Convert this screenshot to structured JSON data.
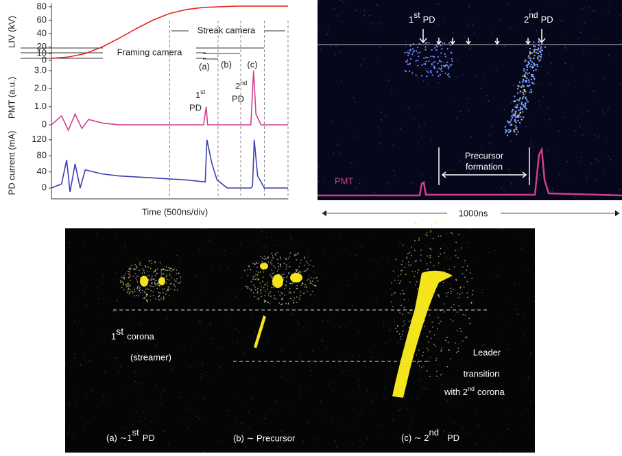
{
  "chart_data": [
    {
      "type": "line",
      "ylabel": "LIV (kV)",
      "xlim": [
        0,
        7
      ],
      "ylim": [
        0,
        85
      ],
      "yticks": [
        0,
        10,
        20,
        40,
        60,
        80
      ],
      "x": [
        0,
        0.5,
        1,
        1.5,
        2,
        2.5,
        3,
        3.5,
        4,
        4.5,
        5,
        5.5,
        6,
        6.5,
        7
      ],
      "series": [
        {
          "color": "#e8241c",
          "values": [
            3,
            5,
            10,
            20,
            33,
            47,
            60,
            70,
            76,
            79,
            80,
            81,
            81,
            81,
            81
          ]
        }
      ],
      "xmarkers": [
        3.5,
        4.93,
        5.6,
        6.3,
        7.0
      ],
      "annotations": {
        "streak": "Streak camera",
        "framing": "Framing camera",
        "a": "(a)",
        "b": "(b)",
        "c": "(c)"
      }
    },
    {
      "type": "line",
      "ylabel": "PMT (a.u.)",
      "xlim": [
        0,
        7
      ],
      "ylim": [
        -0.3,
        3.3
      ],
      "yticks": [
        0,
        {
          "value": 1,
          "label": "1.0"
        },
        {
          "value": 2,
          "label": "2.0"
        },
        {
          "value": 3,
          "label": "3.0"
        }
      ],
      "x": [
        0,
        0.3,
        0.5,
        0.7,
        0.9,
        1.1,
        1.5,
        2,
        3,
        4.5,
        4.58,
        4.62,
        4.7,
        5.9,
        5.98,
        6.05,
        6.2,
        7
      ],
      "series": [
        {
          "color": "#d0408f",
          "values": [
            0,
            0.5,
            -0.3,
            0.6,
            -0.2,
            0.3,
            0.1,
            0,
            0,
            0,
            1.0,
            0,
            0,
            0,
            3.0,
            0.6,
            0,
            0
          ]
        }
      ],
      "annotations": {
        "pd1": [
          "1",
          "st",
          "PD"
        ],
        "pd2": [
          "2",
          "nd",
          "PD"
        ]
      }
    },
    {
      "type": "line",
      "ylabel": "PD current (mA)",
      "xlabel": "Time (500ns/div)",
      "xlim": [
        0,
        7
      ],
      "ylim": [
        -10,
        135
      ],
      "yticks": [
        0,
        40,
        80,
        120
      ],
      "x": [
        0,
        0.3,
        0.45,
        0.55,
        0.7,
        0.85,
        1,
        1.5,
        2,
        3,
        4,
        4.55,
        4.6,
        4.75,
        4.9,
        5.2,
        5.9,
        5.95,
        6.0,
        6.1,
        6.3,
        7
      ],
      "series": [
        {
          "color": "#3a3fb0",
          "values": [
            0,
            10,
            70,
            -10,
            60,
            0,
            45,
            35,
            30,
            25,
            20,
            15,
            120,
            60,
            20,
            0,
            0,
            5,
            120,
            30,
            0,
            0
          ]
        }
      ]
    }
  ],
  "streak_image": {
    "pd1": [
      "1",
      "st",
      "PD"
    ],
    "pd2": [
      "2",
      "nd",
      "PD"
    ],
    "precursor": [
      "Precursor",
      "formation"
    ],
    "pmt": "PMT",
    "span": "1000ns"
  },
  "framing_images": {
    "corona1": [
      "1",
      "st",
      "corona"
    ],
    "streamer": "(streamer)",
    "leader": [
      "Leader",
      "transition"
    ],
    "corona2": [
      "with 2",
      "nd",
      "corona"
    ],
    "captions": [
      [
        "(a) ∼1",
        "st",
        "PD"
      ],
      [
        "(b) ∼ Precursor"
      ],
      [
        "(c) ∼ 2",
        "nd",
        "PD"
      ]
    ]
  }
}
